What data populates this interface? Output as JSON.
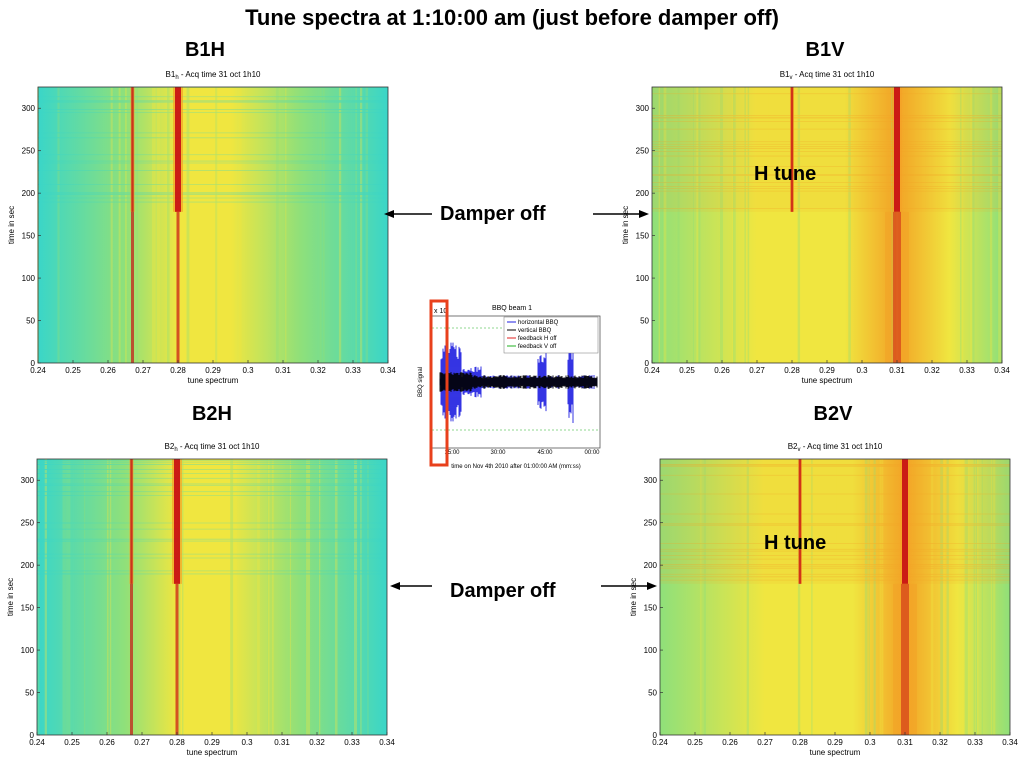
{
  "slide": {
    "title": "Tune spectra at 1:10:00 am (just before damper off)"
  },
  "colors": {
    "background_cyan": "#3ad6c8",
    "mid_green": "#8fe07a",
    "yellow": "#f0e640",
    "orange": "#f3a326",
    "red": "#c81414",
    "highlight_box": "#e8401c",
    "bbq_horizontal": "#1f1fe0",
    "bbq_vertical": "#000000",
    "feedback_h": "#e02020",
    "feedback_v": "#20b020"
  },
  "annotations": {
    "damper_off_top": "Damper off",
    "damper_off_bottom": "Damper off",
    "h_tune_b1v": "H tune",
    "h_tune_b2v": "H tune"
  },
  "bbq_inset": {
    "title": "BBQ beam 1",
    "ylabel": "BBQ signal",
    "xlabel": "time on Nov 4th 2010 after 01:00:00 AM (mm:ss)",
    "multiplier": "x 10",
    "xticks": [
      "15:00",
      "30:00",
      "45:00",
      "00:00"
    ],
    "legend": [
      "horizontal BBQ",
      "vertical BBQ",
      "feedback H off",
      "feedback V off"
    ]
  },
  "chart_data": [
    {
      "type": "heatmap",
      "panel_label": "B1H",
      "title_main": "B1",
      "title_sub": "h",
      "title_rest": " - Acq time 31 oct 1h10",
      "xlabel": "tune spectrum",
      "ylabel": "time in sec",
      "xlim": [
        0.24,
        0.34
      ],
      "ylim": [
        0,
        325
      ],
      "xticks": [
        "0.24",
        "0.25",
        "0.26",
        "0.27",
        "0.28",
        "0.29",
        "0.3",
        "0.31",
        "0.32",
        "0.33",
        "0.34"
      ],
      "yticks": [
        "0",
        "50",
        "100",
        "150",
        "200",
        "250",
        "300"
      ],
      "damper_off_time": 178,
      "tune_lines": [
        {
          "tune": 0.28,
          "intensity": "strong",
          "above_damper": true,
          "below_damper": "medium"
        },
        {
          "tune": 0.267,
          "intensity": "medium",
          "above_damper": true,
          "below_damper": "medium"
        }
      ]
    },
    {
      "type": "heatmap",
      "panel_label": "B1V",
      "title_main": "B1",
      "title_sub": "v",
      "title_rest": " - Acq time 31 oct 1h10",
      "xlabel": "tune spectrum",
      "ylabel": "time in sec",
      "xlim": [
        0.24,
        0.34
      ],
      "ylim": [
        0,
        325
      ],
      "xticks": [
        "0.24",
        "0.25",
        "0.26",
        "0.27",
        "0.28",
        "0.29",
        "0.3",
        "0.31",
        "0.32",
        "0.33",
        "0.34"
      ],
      "yticks": [
        "0",
        "50",
        "100",
        "150",
        "200",
        "250",
        "300"
      ],
      "damper_off_time": 178,
      "tune_lines": [
        {
          "tune": 0.31,
          "intensity": "strong",
          "above_damper": true,
          "below_damper": "broad"
        },
        {
          "tune": 0.28,
          "intensity": "medium",
          "above_damper": true,
          "below_damper": "none"
        }
      ]
    },
    {
      "type": "heatmap",
      "panel_label": "B2H",
      "title_main": "B2",
      "title_sub": "h",
      "title_rest": " - Acq time 31 oct 1h10",
      "xlabel": "tune spectrum",
      "ylabel": "time in sec",
      "xlim": [
        0.24,
        0.34
      ],
      "ylim": [
        0,
        325
      ],
      "xticks": [
        "0.24",
        "0.25",
        "0.26",
        "0.27",
        "0.28",
        "0.29",
        "0.3",
        "0.31",
        "0.32",
        "0.33",
        "0.34"
      ],
      "yticks": [
        "0",
        "50",
        "100",
        "150",
        "200",
        "250",
        "300"
      ],
      "damper_off_time": 178,
      "tune_lines": [
        {
          "tune": 0.28,
          "intensity": "strong",
          "above_damper": true,
          "below_damper": "medium"
        },
        {
          "tune": 0.267,
          "intensity": "medium",
          "above_damper": true,
          "below_damper": "medium"
        }
      ]
    },
    {
      "type": "heatmap",
      "panel_label": "B2V",
      "title_main": "B2",
      "title_sub": "v",
      "title_rest": " - Acq time 31 oct 1h10",
      "xlabel": "tune spectrum",
      "ylabel": "time in sec",
      "xlim": [
        0.24,
        0.34
      ],
      "ylim": [
        0,
        325
      ],
      "xticks": [
        "0.24",
        "0.25",
        "0.26",
        "0.27",
        "0.28",
        "0.29",
        "0.3",
        "0.31",
        "0.32",
        "0.33",
        "0.34"
      ],
      "yticks": [
        "0",
        "50",
        "100",
        "150",
        "200",
        "250",
        "300"
      ],
      "damper_off_time": 178,
      "tune_lines": [
        {
          "tune": 0.31,
          "intensity": "strong",
          "above_damper": true,
          "below_damper": "broad"
        },
        {
          "tune": 0.28,
          "intensity": "medium",
          "above_damper": true,
          "below_damper": "none"
        }
      ]
    }
  ]
}
